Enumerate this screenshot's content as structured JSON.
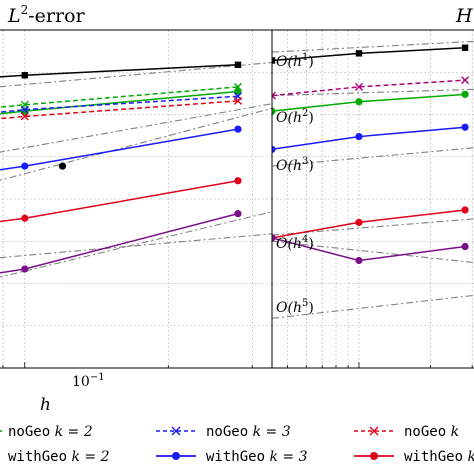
{
  "panels": [
    {
      "title_main": "L",
      "title_sup": "2",
      "title_rest": "-error",
      "xlabel": "h",
      "xtick_labels": [
        {
          "base": "10",
          "exp": "−1",
          "x": 0.1
        }
      ],
      "rate_labels": []
    },
    {
      "title_main": "H",
      "title_sup": "",
      "title_rest": "",
      "xlabel": "",
      "xtick_labels": [],
      "rate_labels": [
        {
          "pre": "O(h",
          "exp": "1",
          "post": ")"
        },
        {
          "pre": "O(h",
          "exp": "2",
          "post": ")"
        },
        {
          "pre": "O(h",
          "exp": "3",
          "post": ")"
        },
        {
          "pre": "O(h",
          "exp": "4",
          "post": ")"
        },
        {
          "pre": "O(h",
          "exp": "5",
          "post": ")"
        }
      ]
    }
  ],
  "legend": [
    {
      "code": "noGeo",
      "rest": "k = 2",
      "color": "#00aa00",
      "style": "dashed",
      "marker": "x"
    },
    {
      "code": "noGeo",
      "rest": "k = 3",
      "color": "#1a1aff",
      "style": "dashed",
      "marker": "x"
    },
    {
      "code": "noGeo",
      "rest": "k",
      "color": "#e0001a",
      "style": "dashed",
      "marker": "x"
    },
    {
      "code": "withGeo",
      "rest": "k = 2",
      "color": "#00aa00",
      "style": "solid",
      "marker": "dot"
    },
    {
      "code": "withGeo",
      "rest": "k = 3",
      "color": "#1a1aff",
      "style": "solid",
      "marker": "dot"
    },
    {
      "code": "withGeo",
      "rest": "k",
      "color": "#e0001a",
      "style": "solid",
      "marker": "dot"
    }
  ],
  "colors": {
    "black": "#000000",
    "green": "#00aa00",
    "blue": "#1a1aff",
    "red": "#e0001a",
    "magenta": "#b0007a",
    "purple": "#7a0f8a",
    "reference": "#808080",
    "grid": "#b0b0b0"
  },
  "chart_data": [
    {
      "type": "line",
      "title": "L2-error",
      "xlabel": "h",
      "ylabel": "",
      "xscale": "log",
      "yscale": "log",
      "xlim": [
        0.043,
        0.33
      ],
      "ylim": [
        1e-09,
        0.1
      ],
      "grid": true,
      "series": [
        {
          "name": "",
          "color": "#000000",
          "style": "solid",
          "marker": "square",
          "x": [
            0.043,
            0.1,
            0.28
          ],
          "y": [
            0.0045,
            0.0085,
            0.015
          ]
        },
        {
          "name": "",
          "color": "#000000",
          "style": "none",
          "marker": "dot",
          "x": [
            0.12
          ],
          "y": [
            6e-05
          ]
        },
        {
          "name": "noGeo k = 2",
          "color": "#00aa00",
          "style": "dashed",
          "marker": "x",
          "x": [
            0.043,
            0.1,
            0.28
          ],
          "y": [
            0.00065,
            0.0017,
            0.0045
          ]
        },
        {
          "name": "withGeo k = 2",
          "color": "#00aa00",
          "style": "solid",
          "marker": "dot",
          "x": [
            0.043,
            0.1,
            0.28
          ],
          "y": [
            0.00045,
            0.0012,
            0.0035
          ]
        },
        {
          "name": "noGeo k = 3",
          "color": "#1a1aff",
          "style": "dashed",
          "marker": "x",
          "x": [
            0.043,
            0.1,
            0.28
          ],
          "y": [
            0.0005,
            0.0013,
            0.0027
          ]
        },
        {
          "name": "withGeo k = 3",
          "color": "#1a1aff",
          "style": "solid",
          "marker": "dot",
          "x": [
            0.043,
            0.1,
            0.28
          ],
          "y": [
            1.5e-05,
            6e-05,
            0.00045
          ]
        },
        {
          "name": "noGeo k",
          "color": "#e0001a",
          "style": "dashed",
          "marker": "x",
          "x": [
            0.043,
            0.1,
            0.28
          ],
          "y": [
            0.0004,
            0.0009,
            0.0021
          ]
        },
        {
          "name": "withGeo k",
          "color": "#e0001a",
          "style": "solid",
          "marker": "dot",
          "x": [
            0.043,
            0.1,
            0.28
          ],
          "y": [
            1e-06,
            3.5e-06,
            2.7e-05
          ]
        },
        {
          "name": "",
          "color": "#7a0f8a",
          "style": "solid",
          "marker": "dot",
          "x": [
            0.043,
            0.1,
            0.28
          ],
          "y": [
            5e-08,
            2.2e-07,
            4.5e-06
          ]
        }
      ],
      "reference_lines": [
        {
          "x": [
            0.043,
            0.33
          ],
          "y": [
            0.0022,
            0.017
          ]
        },
        {
          "x": [
            0.043,
            0.33
          ],
          "y": [
            3e-05,
            0.0018
          ]
        },
        {
          "x": [
            0.043,
            0.33
          ],
          "y": [
            3.2e-06,
            0.0014
          ]
        },
        {
          "x": [
            0.043,
            0.33
          ],
          "y": [
            2e-07,
            1.5e-06
          ]
        },
        {
          "x": [
            0.043,
            0.33
          ],
          "y": [
            2e-08,
            5e-06
          ]
        }
      ]
    },
    {
      "type": "line",
      "title": "H",
      "xlabel": "",
      "ylabel": "",
      "xscale": "log",
      "yscale": "log",
      "xlim": [
        0.043,
        0.33
      ],
      "ylim": [
        1e-09,
        0.1
      ],
      "grid": true,
      "series": [
        {
          "name": "",
          "color": "#000000",
          "style": "solid",
          "marker": "square",
          "x": [
            0.043,
            0.1,
            0.28
          ],
          "y": [
            0.019,
            0.028,
            0.038
          ]
        },
        {
          "name": "",
          "color": "#b0007a",
          "style": "dashed",
          "marker": "x",
          "x": [
            0.043,
            0.1,
            0.28
          ],
          "y": [
            0.0028,
            0.0045,
            0.0065
          ]
        },
        {
          "name": "",
          "color": "#00aa00",
          "style": "solid",
          "marker": "dot",
          "x": [
            0.043,
            0.1,
            0.28
          ],
          "y": [
            0.0012,
            0.002,
            0.003
          ]
        },
        {
          "name": "",
          "color": "#1a1aff",
          "style": "solid",
          "marker": "dot",
          "x": [
            0.043,
            0.1,
            0.28
          ],
          "y": [
            0.00015,
            0.0003,
            0.0005
          ]
        },
        {
          "name": "",
          "color": "#e0001a",
          "style": "solid",
          "marker": "dot",
          "x": [
            0.043,
            0.1,
            0.28
          ],
          "y": [
            1.2e-06,
            2.8e-06,
            5.5e-06
          ]
        },
        {
          "name": "",
          "color": "#7a0f8a",
          "style": "solid",
          "marker": "dot",
          "x": [
            0.043,
            0.1,
            0.28
          ],
          "y": [
            1.2e-06,
            3.5e-07,
            7.5e-07
          ]
        }
      ],
      "reference_lines": [
        {
          "x": [
            0.043,
            0.33
          ],
          "y": [
            0.03,
            0.055
          ]
        },
        {
          "x": [
            0.043,
            0.33
          ],
          "y": [
            0.0028,
            0.004
          ]
        },
        {
          "x": [
            0.043,
            0.33
          ],
          "y": [
            6e-05,
            0.00017
          ]
        },
        {
          "x": [
            0.043,
            0.33
          ],
          "y": [
            1.4e-06,
            3.5e-06
          ]
        },
        {
          "x": [
            0.043,
            0.33
          ],
          "y": [
            1.5e-08,
            5.5e-08
          ]
        },
        {
          "x": [
            0.043,
            0.33
          ],
          "y": [
            1e-06,
            3e-07
          ]
        }
      ]
    }
  ]
}
